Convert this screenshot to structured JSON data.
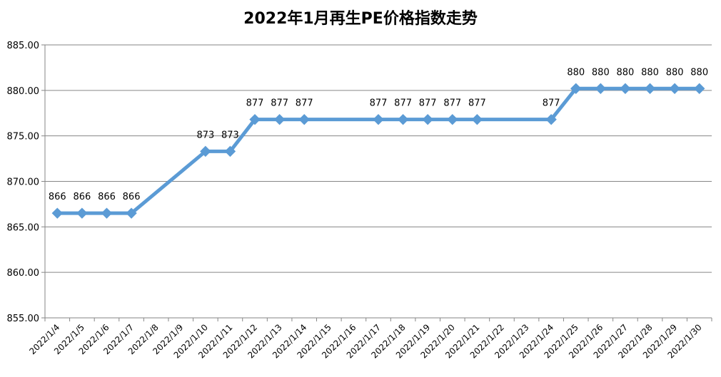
{
  "chart_data": {
    "type": "line",
    "title": "2022年1月再生PE价格指数走势",
    "xlabel": "",
    "ylabel": "",
    "ylim": [
      855,
      885
    ],
    "yticks": [
      "855.00",
      "860.00",
      "865.00",
      "870.00",
      "875.00",
      "880.00",
      "885.00"
    ],
    "grid": true,
    "legend": "none",
    "colors": {
      "line": "#5B9BD5",
      "grid": "#868686",
      "axis": "#868686",
      "text": "#000000"
    },
    "categories": [
      "2022/1/4",
      "2022/1/5",
      "2022/1/6",
      "2022/1/7",
      "2022/1/8",
      "2022/1/9",
      "2022/1/10",
      "2022/1/11",
      "2022/1/12",
      "2022/1/13",
      "2022/1/14",
      "2022/1/15",
      "2022/1/16",
      "2022/1/17",
      "2022/1/18",
      "2022/1/19",
      "2022/1/20",
      "2022/1/21",
      "2022/1/22",
      "2022/1/23",
      "2022/1/24",
      "2022/1/25",
      "2022/1/26",
      "2022/1/27",
      "2022/1/28",
      "2022/1/29",
      "2022/1/30"
    ],
    "series": [
      {
        "values": [
          866.5,
          866.5,
          866.5,
          866.5,
          null,
          null,
          873.3,
          873.3,
          876.8,
          876.8,
          876.8,
          null,
          null,
          876.8,
          876.8,
          876.8,
          876.8,
          876.8,
          null,
          null,
          876.8,
          880.2,
          880.2,
          880.2,
          880.2,
          880.2,
          880.2
        ],
        "labels": [
          "866",
          "866",
          "866",
          "866",
          "",
          "",
          "873",
          "873",
          "877",
          "877",
          "877",
          "",
          "",
          "877",
          "877",
          "877",
          "877",
          "877",
          "",
          "",
          "877",
          "880",
          "880",
          "880",
          "880",
          "880",
          "880"
        ]
      }
    ]
  }
}
